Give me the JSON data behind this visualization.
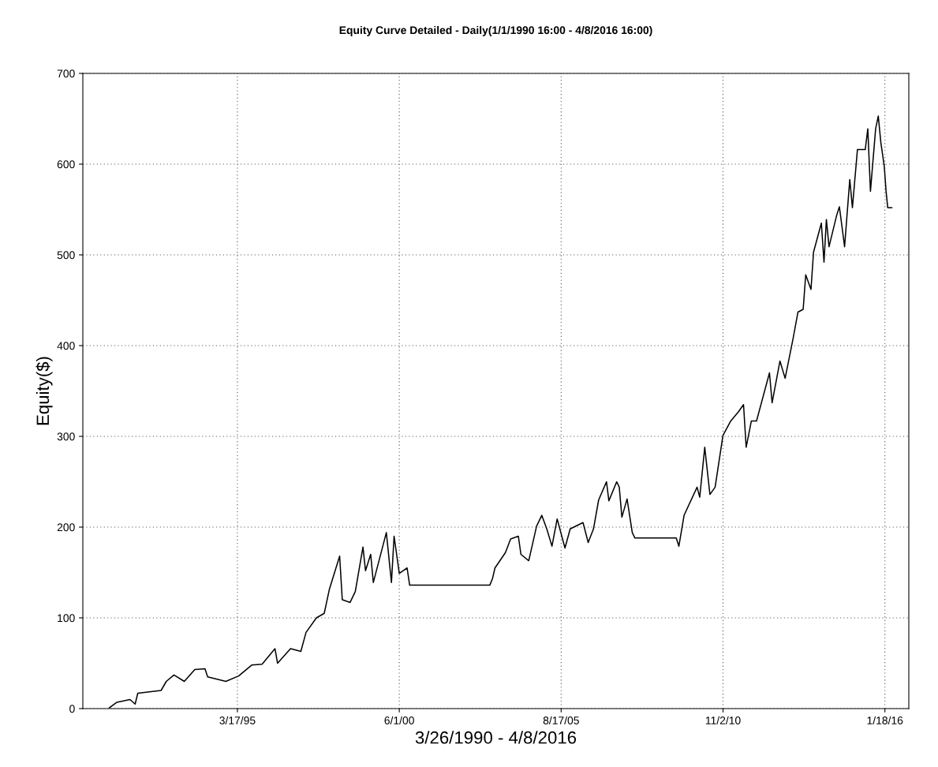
{
  "chart_data": {
    "type": "line",
    "title": "Equity Curve Detailed - Daily(1/1/1990 16:00 - 4/8/2016 16:00)",
    "xlabel": "3/26/1990 - 4/8/2016",
    "ylabel": "Equity($)",
    "xlim": [
      "1990-03-26",
      "2016-10-25"
    ],
    "xticks": [
      {
        "value": "1995-03-17",
        "label": "3/17/95"
      },
      {
        "value": "2000-06-01",
        "label": "6/1/00"
      },
      {
        "value": "2005-08-17",
        "label": "8/17/05"
      },
      {
        "value": "2010-11-02",
        "label": "11/2/10"
      },
      {
        "value": "2016-01-18",
        "label": "1/18/16"
      }
    ],
    "ylim": [
      0,
      700
    ],
    "yticks": [
      0,
      100,
      200,
      300,
      400,
      500,
      600,
      700
    ],
    "grid": true,
    "line_style": "solid",
    "series": [
      {
        "color": "#000000",
        "x": [
          "1991-02",
          "1991-05",
          "1991-10",
          "1991-12",
          "1992-01",
          "1992-10",
          "1992-12",
          "1993-03",
          "1993-07",
          "1993-11",
          "1994-03",
          "1994-04",
          "1994-11",
          "1995-04",
          "1995-09",
          "1996-01",
          "1996-06",
          "1996-07",
          "1996-12",
          "1997-04",
          "1997-06",
          "1997-10",
          "1998-01",
          "1998-03",
          "1998-07",
          "1998-08",
          "1998-11",
          "1999-01",
          "1999-04",
          "1999-05",
          "1999-07",
          "1999-08",
          "2000-01",
          "2000-03",
          "2000-04",
          "2000-06",
          "2000-09",
          "2000-10",
          "2003-05",
          "2003-06",
          "2003-07",
          "2003-11",
          "2004-01",
          "2004-04",
          "2004-05",
          "2004-08",
          "2004-11",
          "2005-01",
          "2005-03",
          "2005-05",
          "2005-07",
          "2005-10",
          "2005-12",
          "2006-05",
          "2006-07",
          "2006-09",
          "2006-11",
          "2007-02",
          "2007-03",
          "2007-06",
          "2007-07",
          "2007-08",
          "2007-10",
          "2007-12",
          "2008-01",
          "2009-05",
          "2009-06",
          "2009-08",
          "2010-01",
          "2010-02",
          "2010-04",
          "2010-06",
          "2010-08",
          "2010-11",
          "2011-02",
          "2011-05",
          "2011-07",
          "2011-08",
          "2011-10",
          "2011-12",
          "2012-05",
          "2012-06",
          "2012-09",
          "2012-11",
          "2013-02",
          "2013-04",
          "2013-06",
          "2013-07",
          "2013-09",
          "2013-10",
          "2014-01",
          "2014-02",
          "2014-03",
          "2014-04",
          "2014-07",
          "2014-08",
          "2014-10",
          "2014-12",
          "2015-01",
          "2015-03",
          "2015-06",
          "2015-07",
          "2015-08",
          "2015-10",
          "2015-11",
          "2015-12",
          "2016-01-10",
          "2016-02-01",
          "2016-02-20",
          "2016-04-08"
        ],
        "values": [
          1,
          7,
          10,
          5,
          17,
          20,
          30,
          37,
          30,
          43,
          44,
          35,
          30,
          36,
          48,
          49,
          66,
          50,
          66,
          63,
          84,
          100,
          105,
          131,
          168,
          120,
          117,
          129,
          178,
          152,
          170,
          139,
          194,
          139,
          190,
          149,
          155,
          136,
          136,
          143,
          155,
          172,
          187,
          190,
          170,
          163,
          201,
          213,
          198,
          179,
          209,
          177,
          198,
          205,
          183,
          198,
          230,
          250,
          229,
          250,
          244,
          211,
          231,
          194,
          188,
          188,
          179,
          213,
          244,
          233,
          288,
          236,
          244,
          301,
          317,
          327,
          335,
          288,
          317,
          317,
          370,
          337,
          383,
          364,
          407,
          437,
          440,
          478,
          462,
          503,
          535,
          492,
          539,
          509,
          544,
          553,
          509,
          583,
          552,
          616,
          616,
          639,
          570,
          639,
          653,
          624,
          598,
          570,
          552,
          552
        ]
      }
    ]
  }
}
